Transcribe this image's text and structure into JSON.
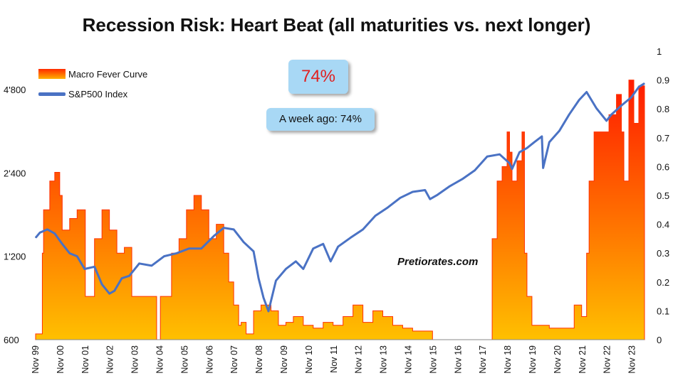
{
  "chart_data": {
    "type": "area",
    "title": "Recession Risk: Heart Beat (all maturities vs. next longer)",
    "left_axis": {
      "ticks": [
        "600",
        "1'200",
        "2'400",
        "4'800"
      ],
      "scale": "log",
      "range": [
        600,
        6600
      ]
    },
    "right_axis": {
      "ticks": [
        "0",
        "0.1",
        "0.2",
        "0.3",
        "0.4",
        "0.5",
        "0.6",
        "0.7",
        "0.8",
        "0.9",
        "1"
      ],
      "range": [
        0,
        1
      ]
    },
    "x_ticks": [
      "Nov 99",
      "Nov 00",
      "Nov 01",
      "Nov 02",
      "Nov 03",
      "Nov 04",
      "Nov 05",
      "Nov 06",
      "Nov 07",
      "Nov 08",
      "Nov 09",
      "Nov 10",
      "Nov 11",
      "Nov 12",
      "Nov 13",
      "Nov 14",
      "Nov 15",
      "Nov 16",
      "Nov 17",
      "Nov 18",
      "Nov 19",
      "Nov 20",
      "Nov 21",
      "Nov 22",
      "Nov 23"
    ],
    "x_range": [
      1999.83,
      2024.33
    ],
    "series": [
      {
        "name": "Macro Fever Curve",
        "style": "area-gradient",
        "colors": {
          "top": "#ff2200",
          "bottom": "#ffb400"
        },
        "x": [
          1999.83,
          2000.1,
          2000.15,
          2000.4,
          2000.6,
          2000.8,
          2000.9,
          2001.2,
          2001.5,
          2001.83,
          2002.2,
          2002.5,
          2002.8,
          2003.1,
          2003.4,
          2003.7,
          2004.0,
          2004.3,
          2004.6,
          2004.7,
          2004.85,
          2005.1,
          2005.3,
          2005.6,
          2005.9,
          2006.2,
          2006.5,
          2006.8,
          2007.1,
          2007.4,
          2007.6,
          2007.8,
          2008.0,
          2008.1,
          2008.3,
          2008.6,
          2008.9,
          2009.3,
          2009.6,
          2009.9,
          2010.2,
          2010.6,
          2011.0,
          2011.4,
          2011.8,
          2012.2,
          2012.6,
          2013.0,
          2013.4,
          2013.8,
          2014.2,
          2014.6,
          2015.0,
          2015.4,
          2015.8,
          2016.2,
          2016.6,
          2017.0,
          2017.4,
          2017.8,
          2018.2,
          2018.4,
          2018.6,
          2018.8,
          2018.9,
          2019.0,
          2019.2,
          2019.4,
          2019.5,
          2019.6,
          2019.8,
          2020.0,
          2020.5,
          2021.0,
          2021.5,
          2021.8,
          2022.0,
          2022.1,
          2022.3,
          2022.6,
          2022.9,
          2023.2,
          2023.4,
          2023.5,
          2023.7,
          2023.9,
          2024.1,
          2024.33
        ],
        "y": [
          0.02,
          0.3,
          0.45,
          0.55,
          0.58,
          0.5,
          0.38,
          0.42,
          0.45,
          0.15,
          0.35,
          0.45,
          0.38,
          0.3,
          0.32,
          0.15,
          0.15,
          0.15,
          0.15,
          0.0,
          0.15,
          0.15,
          0.3,
          0.35,
          0.45,
          0.5,
          0.45,
          0.35,
          0.4,
          0.3,
          0.2,
          0.12,
          0.05,
          0.06,
          0.02,
          0.1,
          0.12,
          0.1,
          0.05,
          0.06,
          0.08,
          0.05,
          0.04,
          0.06,
          0.05,
          0.08,
          0.12,
          0.06,
          0.1,
          0.08,
          0.05,
          0.04,
          0.03,
          0.03,
          0.0,
          0.0,
          0.0,
          0.0,
          0.0,
          0.0,
          0.35,
          0.55,
          0.6,
          0.72,
          0.65,
          0.55,
          0.62,
          0.72,
          0.3,
          0.15,
          0.05,
          0.05,
          0.04,
          0.04,
          0.12,
          0.08,
          0.3,
          0.55,
          0.72,
          0.72,
          0.78,
          0.85,
          0.72,
          0.55,
          0.9,
          0.75,
          0.88,
          0.74
        ]
      },
      {
        "name": "S&P500 Index",
        "style": "line",
        "color": "#4a72c4",
        "x": [
          1999.83,
          2000.0,
          2000.3,
          2000.6,
          2000.9,
          2001.2,
          2001.5,
          2001.8,
          2002.2,
          2002.5,
          2002.8,
          2003.0,
          2003.3,
          2003.6,
          2004.0,
          2004.5,
          2005.0,
          2005.5,
          2006.0,
          2006.5,
          2007.0,
          2007.4,
          2007.8,
          2008.2,
          2008.6,
          2008.8,
          2009.0,
          2009.2,
          2009.5,
          2009.9,
          2010.3,
          2010.6,
          2011.0,
          2011.4,
          2011.7,
          2012.0,
          2012.5,
          2013.0,
          2013.5,
          2014.0,
          2014.5,
          2015.0,
          2015.5,
          2015.7,
          2016.0,
          2016.5,
          2017.0,
          2017.5,
          2018.0,
          2018.5,
          2018.9,
          2019.0,
          2019.3,
          2019.6,
          2019.9,
          2020.2,
          2020.25,
          2020.5,
          2020.9,
          2021.3,
          2021.7,
          2022.0,
          2022.4,
          2022.8,
          2023.0,
          2023.4,
          2023.8,
          2024.1,
          2024.33
        ],
        "y": [
          1400,
          1460,
          1500,
          1450,
          1330,
          1230,
          1200,
          1080,
          1100,
          950,
          880,
          900,
          1000,
          1020,
          1130,
          1110,
          1200,
          1230,
          1280,
          1280,
          1420,
          1520,
          1500,
          1350,
          1250,
          1000,
          850,
          760,
          980,
          1080,
          1150,
          1080,
          1280,
          1330,
          1150,
          1300,
          1400,
          1500,
          1680,
          1800,
          1950,
          2050,
          2080,
          1930,
          2000,
          2150,
          2280,
          2450,
          2750,
          2800,
          2600,
          2480,
          2850,
          2950,
          3100,
          3250,
          2500,
          3100,
          3400,
          3900,
          4400,
          4700,
          4100,
          3700,
          3900,
          4200,
          4500,
          4900,
          5050
        ]
      }
    ],
    "legend_position": "top-left",
    "annotations": {
      "current_value": "74%",
      "week_ago": "A week ago: 74%",
      "watermark": "Pretiorates.com"
    },
    "grid": false
  }
}
